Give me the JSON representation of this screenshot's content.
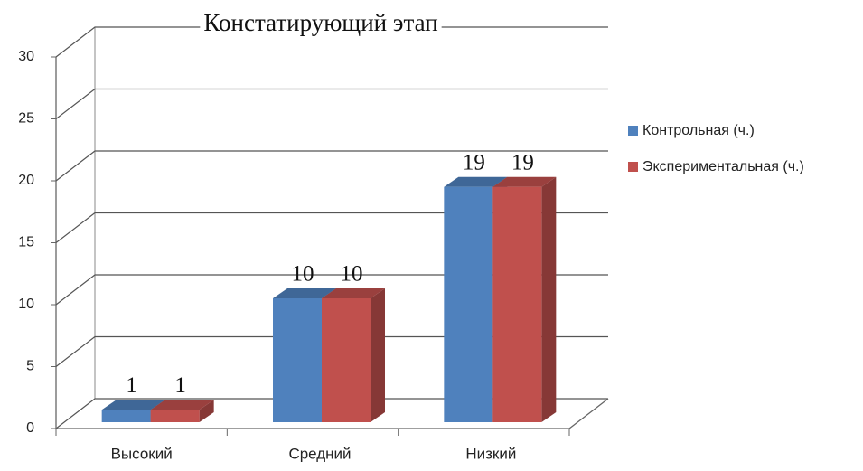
{
  "chart_data": {
    "type": "bar",
    "title": "Констатирующий этап",
    "categories": [
      "Высокий",
      "Средний",
      "Низкий"
    ],
    "series": [
      {
        "name": "Контрольная (ч.)",
        "color": "#4f81bd",
        "values": [
          1,
          10,
          19
        ]
      },
      {
        "name": "Экспериментальная (ч.)",
        "color": "#c0504d",
        "values": [
          1,
          10,
          19
        ]
      }
    ],
    "ylim": [
      0,
      30
    ],
    "yticks": [
      0,
      5,
      10,
      15,
      20,
      25,
      30
    ],
    "grid": true,
    "legend": "right"
  }
}
